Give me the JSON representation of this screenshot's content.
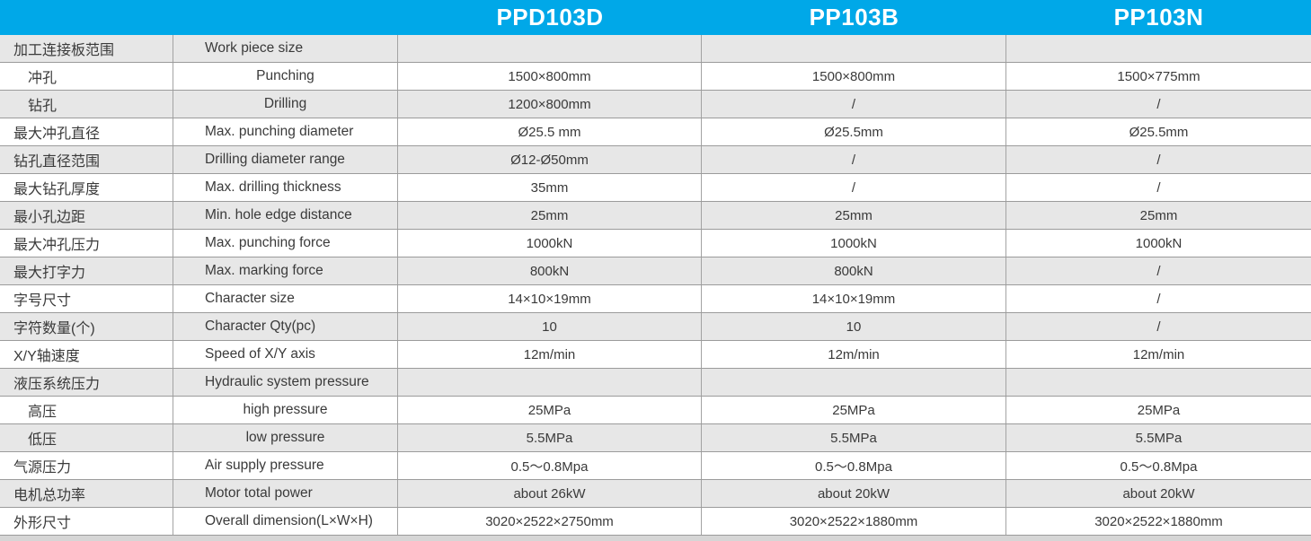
{
  "colors": {
    "header_bg": "#00a8e8",
    "header_text": "#ffffff",
    "stripe_bg": "#e7e7e7",
    "row_bg": "#ffffff",
    "border": "#9b9b9b",
    "text": "#3a3a3a"
  },
  "table": {
    "models": [
      "PPD103D",
      "PP103B",
      "PP103N"
    ],
    "rows": [
      {
        "cn": "加工连接板范围",
        "en": "Work piece size",
        "sub": false,
        "values": [
          "",
          "",
          ""
        ]
      },
      {
        "cn": "冲孔",
        "en": "Punching",
        "sub": true,
        "values": [
          "1500×800mm",
          "1500×800mm",
          "1500×775mm"
        ]
      },
      {
        "cn": "钻孔",
        "en": "Drilling",
        "sub": true,
        "values": [
          "1200×800mm",
          "/",
          "/"
        ]
      },
      {
        "cn": "最大冲孔直径",
        "en": "Max. punching diameter",
        "sub": false,
        "values": [
          "Ø25.5 mm",
          "Ø25.5mm",
          "Ø25.5mm"
        ]
      },
      {
        "cn": "钻孔直径范围",
        "en": "Drilling diameter range",
        "sub": false,
        "values": [
          "Ø12-Ø50mm",
          "/",
          "/"
        ]
      },
      {
        "cn": "最大钻孔厚度",
        "en": "Max. drilling thickness",
        "sub": false,
        "values": [
          "35mm",
          "/",
          "/"
        ]
      },
      {
        "cn": "最小孔边距",
        "en": "Min. hole edge distance",
        "sub": false,
        "values": [
          "25mm",
          "25mm",
          "25mm"
        ]
      },
      {
        "cn": "最大冲孔压力",
        "en": "Max. punching force",
        "sub": false,
        "values": [
          "1000kN",
          "1000kN",
          "1000kN"
        ]
      },
      {
        "cn": "最大打字力",
        "en": "Max. marking force",
        "sub": false,
        "values": [
          "800kN",
          "800kN",
          "/"
        ]
      },
      {
        "cn": "字号尺寸",
        "en": "Character size",
        "sub": false,
        "values": [
          "14×10×19mm",
          "14×10×19mm",
          "/"
        ]
      },
      {
        "cn": "字符数量(个)",
        "en": "Character Qty(pc)",
        "sub": false,
        "values": [
          "10",
          "10",
          "/"
        ]
      },
      {
        "cn": "X/Y轴速度",
        "en": "Speed of X/Y axis",
        "sub": false,
        "values": [
          "12m/min",
          "12m/min",
          "12m/min"
        ]
      },
      {
        "cn": "液压系统压力",
        "en": "Hydraulic system pressure",
        "sub": false,
        "values": [
          "",
          "",
          ""
        ]
      },
      {
        "cn": "高压",
        "en": "high pressure",
        "sub": true,
        "values": [
          "25MPa",
          "25MPa",
          "25MPa"
        ]
      },
      {
        "cn": "低压",
        "en": "low pressure",
        "sub": true,
        "values": [
          "5.5MPa",
          "5.5MPa",
          "5.5MPa"
        ]
      },
      {
        "cn": "气源压力",
        "en": "Air supply pressure",
        "sub": false,
        "values": [
          "0.5～0.8Mpa",
          "0.5～0.8Mpa",
          "0.5～0.8Mpa"
        ]
      },
      {
        "cn": "电机总功率",
        "en": "Motor total power",
        "sub": false,
        "values": [
          "about 26kW",
          "about 20kW",
          "about 20kW"
        ]
      },
      {
        "cn": "外形尺寸",
        "en": "Overall dimension(L×W×H)",
        "sub": false,
        "values": [
          "3020×2522×2750mm",
          "3020×2522×1880mm",
          "3020×2522×1880mm"
        ]
      }
    ]
  }
}
